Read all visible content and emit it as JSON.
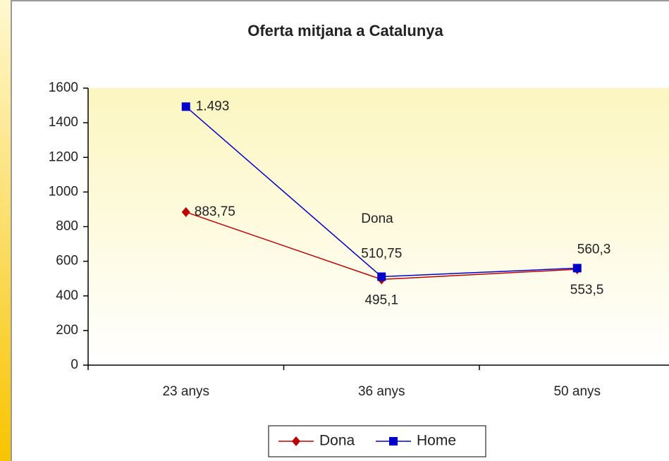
{
  "chart_data": {
    "type": "line",
    "title": "Oferta mitjana a Catalunya",
    "categories": [
      "23 anys",
      "36 anys",
      "50 anys"
    ],
    "series": [
      {
        "name": "Dona",
        "color": "#c00000",
        "marker": "diamond",
        "values": [
          883.75,
          495.1,
          553.5
        ],
        "value_labels": [
          "883,75",
          "495,1",
          "553,5"
        ]
      },
      {
        "name": "Home",
        "color": "#0000cc",
        "marker": "square",
        "values": [
          1493,
          510.75,
          560.3
        ],
        "value_labels": [
          "1.493",
          "510,75",
          "560,3"
        ]
      }
    ],
    "annotations": [
      "Dona"
    ],
    "ylim": [
      0,
      1600
    ],
    "yticks": [
      0,
      200,
      400,
      600,
      800,
      1000,
      1200,
      1400,
      1600
    ],
    "legend": "bottom"
  }
}
